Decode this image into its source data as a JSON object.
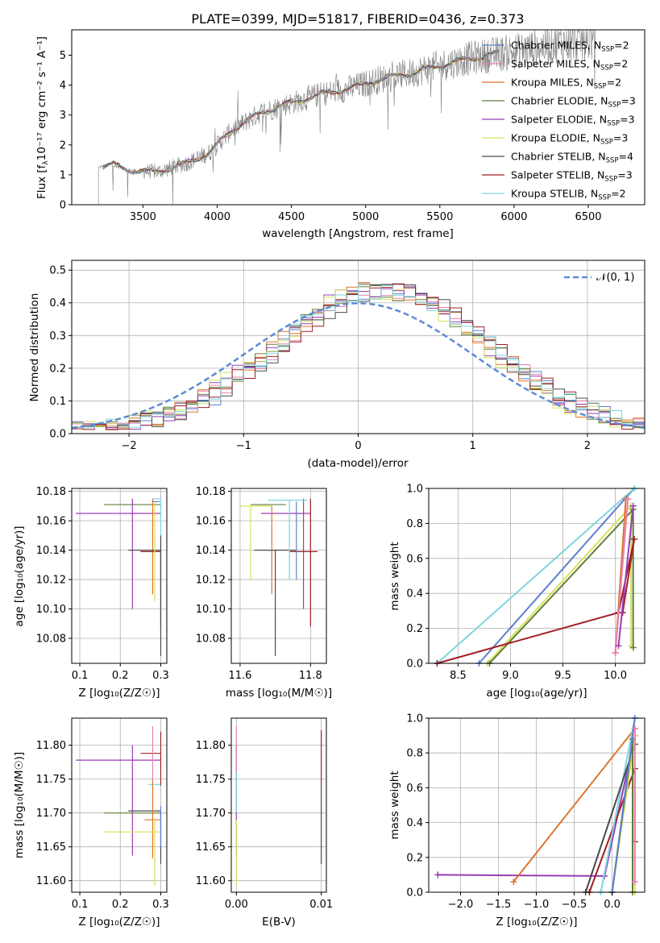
{
  "figure": {
    "title": "PLATE=0399, MJD=51817, FIBERID=0436, z=0.373"
  },
  "colors": {
    "data_spectrum": "#808080",
    "normal_curve": "#5b8bd6",
    "grid": "#b0b0b0"
  },
  "models": [
    {
      "label_main": "Chabrier MILES, N",
      "label_sub": "SSP",
      "label_tail": "=2",
      "color": "#5b7fce"
    },
    {
      "label_main": "Salpeter MILES, N",
      "label_sub": "SSP",
      "label_tail": "=2",
      "color": "#e87fae"
    },
    {
      "label_main": "Kroupa MILES, N",
      "label_sub": "SSP",
      "label_tail": "=2",
      "color": "#e0742c"
    },
    {
      "label_main": "Chabrier ELODIE, N",
      "label_sub": "SSP",
      "label_tail": "=3",
      "color": "#5f7f3a"
    },
    {
      "label_main": "Salpeter ELODIE, N",
      "label_sub": "SSP",
      "label_tail": "=3",
      "color": "#9a3cb5"
    },
    {
      "label_main": "Kroupa ELODIE, N",
      "label_sub": "SSP",
      "label_tail": "=3",
      "color": "#d4e35a"
    },
    {
      "label_main": "Chabrier STELIB, N",
      "label_sub": "SSP",
      "label_tail": "=4",
      "color": "#4a4a4a"
    },
    {
      "label_main": "Salpeter STELIB, N",
      "label_sub": "SSP",
      "label_tail": "=3",
      "color": "#a11f24"
    },
    {
      "label_main": "Kroupa STELIB, N",
      "label_sub": "SSP",
      "label_tail": "=2",
      "color": "#7fd4dc"
    }
  ],
  "chart_data": [
    {
      "id": "spectrum",
      "type": "line",
      "title": "PLATE=0399, MJD=51817, FIBERID=0436, z=0.373",
      "xlabel": "wavelength [Angstrom, rest frame]",
      "ylabel_main": "Flux [f",
      "ylabel_sub": "λ",
      "ylabel_tail": "10⁻¹⁷ erg cm⁻² s⁻¹ A⁻¹]",
      "xlim": [
        3020,
        6880
      ],
      "ylim": [
        0,
        5.85
      ],
      "xticks": [
        3500,
        4000,
        4500,
        5000,
        5500,
        6000,
        6500
      ],
      "yticks": [
        0,
        1,
        2,
        3,
        4,
        5
      ],
      "grid": false,
      "legend_position": "top-right",
      "x_range_data": [
        3200,
        6550
      ],
      "continuum_knots": [
        [
          3200,
          1.25
        ],
        [
          3300,
          1.35
        ],
        [
          3400,
          1.15
        ],
        [
          3600,
          1.1
        ],
        [
          3800,
          1.4
        ],
        [
          3950,
          1.75
        ],
        [
          4100,
          2.5
        ],
        [
          4300,
          3.1
        ],
        [
          4500,
          3.4
        ],
        [
          4700,
          3.7
        ],
        [
          4900,
          3.9
        ],
        [
          5100,
          4.2
        ],
        [
          5300,
          4.4
        ],
        [
          5500,
          4.65
        ],
        [
          5700,
          4.9
        ],
        [
          5900,
          5.05
        ],
        [
          6100,
          5.2
        ],
        [
          6300,
          5.4
        ],
        [
          6550,
          5.5
        ]
      ]
    },
    {
      "id": "residuals",
      "type": "histogram",
      "xlabel": "(data-model)/error",
      "ylabel": "Normed distribution",
      "xlim": [
        -2.5,
        2.5
      ],
      "ylim": [
        0,
        0.53
      ],
      "xticks": [
        -2,
        -1,
        0,
        1,
        2
      ],
      "yticks": [
        0,
        0.1,
        0.2,
        0.3,
        0.4,
        0.5
      ],
      "grid": true,
      "legend_position": "top-right",
      "normal_label": "𝒩(0, 1)",
      "bin_width": 0.1,
      "hist_center": 0.22,
      "hist_sigma": 0.93,
      "hist_peak": 0.44
    },
    {
      "id": "age-vs-Z",
      "type": "scatter",
      "xlabel": "Z [log₁₀(Z/Z☉)]",
      "ylabel": "age  [log₁₀(age/yr)]",
      "xlim": [
        0.08,
        0.315
      ],
      "ylim": [
        10.063,
        10.182
      ],
      "xticks": [
        0.1,
        0.2,
        0.3
      ],
      "yticks": [
        10.08,
        10.1,
        10.12,
        10.14,
        10.16,
        10.18
      ],
      "grid": true,
      "points": [
        {
          "x": 0.3,
          "y": 10.171,
          "xlo": 0.16,
          "xhi": 0.3,
          "ylo": 10.171,
          "yhi": 10.171,
          "model": 3
        },
        {
          "x": 0.3,
          "y": 10.165,
          "xlo": 0.09,
          "xhi": 0.3,
          "ylo": 10.165,
          "yhi": 10.165,
          "model": 4
        },
        {
          "x": 0.23,
          "y": 10.165,
          "xlo": 0.23,
          "xhi": 0.23,
          "ylo": 10.1,
          "yhi": 10.175,
          "model": 4
        },
        {
          "x": 0.28,
          "y": 10.17,
          "xlo": 0.28,
          "xhi": 0.28,
          "ylo": 10.11,
          "yhi": 10.175,
          "model": 2
        },
        {
          "x": 0.3,
          "y": 10.14,
          "xlo": 0.22,
          "xhi": 0.3,
          "ylo": 10.14,
          "yhi": 10.14,
          "model": 6
        },
        {
          "x": 0.3,
          "y": 10.139,
          "xlo": 0.25,
          "xhi": 0.3,
          "ylo": 10.088,
          "yhi": 10.139,
          "model": 7
        },
        {
          "x": 0.285,
          "y": 10.17,
          "xlo": 0.285,
          "xhi": 0.285,
          "ylo": 10.105,
          "yhi": 10.172,
          "model": 5
        },
        {
          "x": 0.3,
          "y": 10.175,
          "xlo": 0.28,
          "xhi": 0.3,
          "ylo": 10.12,
          "yhi": 10.175,
          "model": 8
        },
        {
          "x": 0.298,
          "y": 10.173,
          "xlo": 0.28,
          "xhi": 0.298,
          "ylo": 10.173,
          "yhi": 10.173,
          "model": 0
        },
        {
          "x": 0.3,
          "y": 10.15,
          "xlo": 0.3,
          "xhi": 0.3,
          "ylo": 10.068,
          "yhi": 10.15,
          "model": 6
        }
      ]
    },
    {
      "id": "age-vs-mass",
      "type": "scatter",
      "xlabel": "mass [log₁₀(M/M☉)]",
      "ylabel": "",
      "xlim": [
        11.575,
        11.845
      ],
      "ylim": [
        10.063,
        10.182
      ],
      "xticks": [
        11.6,
        11.8
      ],
      "yticks": [
        10.08,
        10.1,
        10.12,
        10.14,
        10.16,
        10.18
      ],
      "grid": true,
      "points": [
        {
          "x": 11.7,
          "y": 10.171,
          "xlo": 11.63,
          "xhi": 11.73,
          "ylo": 10.171,
          "yhi": 10.171,
          "model": 3
        },
        {
          "x": 11.7,
          "y": 10.165,
          "xlo": 11.66,
          "xhi": 11.8,
          "ylo": 10.165,
          "yhi": 10.165,
          "model": 4
        },
        {
          "x": 11.78,
          "y": 10.165,
          "xlo": 11.78,
          "xhi": 11.78,
          "ylo": 10.1,
          "yhi": 10.175,
          "model": 4
        },
        {
          "x": 11.69,
          "y": 10.17,
          "xlo": 11.6,
          "xhi": 11.69,
          "ylo": 10.17,
          "yhi": 10.17,
          "model": 5
        },
        {
          "x": 11.63,
          "y": 10.17,
          "xlo": 11.63,
          "xhi": 11.63,
          "ylo": 10.12,
          "yhi": 10.17,
          "model": 5
        },
        {
          "x": 11.69,
          "y": 10.17,
          "xlo": 11.69,
          "xhi": 11.69,
          "ylo": 10.11,
          "yhi": 10.17,
          "model": 2
        },
        {
          "x": 11.7,
          "y": 10.14,
          "xlo": 11.64,
          "xhi": 11.76,
          "ylo": 10.14,
          "yhi": 10.14,
          "model": 6
        },
        {
          "x": 11.7,
          "y": 10.14,
          "xlo": 11.7,
          "xhi": 11.7,
          "ylo": 10.068,
          "yhi": 10.14,
          "model": 6
        },
        {
          "x": 11.78,
          "y": 10.139,
          "xlo": 11.74,
          "xhi": 11.82,
          "ylo": 10.139,
          "yhi": 10.139,
          "model": 7
        },
        {
          "x": 11.8,
          "y": 10.139,
          "xlo": 11.8,
          "xhi": 11.8,
          "ylo": 10.088,
          "yhi": 10.175,
          "model": 7
        },
        {
          "x": 11.74,
          "y": 10.174,
          "xlo": 11.68,
          "xhi": 11.79,
          "ylo": 10.174,
          "yhi": 10.174,
          "model": 8
        },
        {
          "x": 11.74,
          "y": 10.174,
          "xlo": 11.74,
          "xhi": 11.74,
          "ylo": 10.12,
          "yhi": 10.174,
          "model": 8
        },
        {
          "x": 11.76,
          "y": 10.173,
          "xlo": 11.76,
          "xhi": 11.76,
          "ylo": 10.12,
          "yhi": 10.173,
          "model": 0
        }
      ]
    },
    {
      "id": "weight-vs-age",
      "type": "line",
      "xlabel": "age  [log₁₀(age/yr)]",
      "ylabel": "mass weight",
      "xlim": [
        8.22,
        10.28
      ],
      "ylim": [
        0,
        1
      ],
      "xticks": [
        8.5,
        9.0,
        9.5,
        10.0
      ],
      "yticks": [
        0,
        0.2,
        0.4,
        0.6,
        0.8,
        1.0
      ],
      "grid": true,
      "series": [
        {
          "model": 0,
          "points": [
            [
              8.7,
              0.0
            ],
            [
              10.18,
              1.0
            ]
          ]
        },
        {
          "model": 8,
          "points": [
            [
              8.3,
              0.0
            ],
            [
              10.18,
              1.0
            ]
          ]
        },
        {
          "model": 5,
          "points": [
            [
              8.78,
              0.0
            ],
            [
              10.15,
              0.9
            ],
            [
              10.15,
              0.1
            ]
          ]
        },
        {
          "model": 3,
          "points": [
            [
              8.8,
              0.0
            ],
            [
              10.17,
              0.88
            ],
            [
              10.17,
              0.09
            ]
          ]
        },
        {
          "model": 7,
          "points": [
            [
              8.3,
              0.0
            ],
            [
              10.03,
              0.29
            ],
            [
              10.18,
              0.71
            ],
            [
              10.07,
              0.29
            ]
          ]
        },
        {
          "model": 2,
          "points": [
            [
              10.0,
              0.06
            ],
            [
              10.1,
              0.94
            ]
          ]
        },
        {
          "model": 1,
          "points": [
            [
              10.0,
              0.06
            ],
            [
              10.12,
              0.94
            ]
          ]
        },
        {
          "model": 4,
          "points": [
            [
              10.03,
              0.1
            ],
            [
              10.17,
              0.9
            ]
          ]
        }
      ]
    },
    {
      "id": "mass-vs-Z",
      "type": "scatter",
      "xlabel": "Z [log₁₀(Z/Z☉)]",
      "ylabel": "mass [log₁₀(M/M☉)]",
      "xlim": [
        0.08,
        0.315
      ],
      "ylim": [
        11.583,
        11.84
      ],
      "xticks": [
        0.1,
        0.2,
        0.3
      ],
      "yticks": [
        11.6,
        11.65,
        11.7,
        11.75,
        11.8
      ],
      "grid": true,
      "points": [
        {
          "x": 0.3,
          "y": 11.778,
          "xlo": 0.09,
          "xhi": 0.3,
          "ylo": 11.778,
          "yhi": 11.778,
          "model": 4
        },
        {
          "x": 0.23,
          "y": 11.778,
          "xlo": 0.23,
          "xhi": 0.23,
          "ylo": 11.637,
          "yhi": 11.8,
          "model": 4
        },
        {
          "x": 0.3,
          "y": 11.788,
          "xlo": 0.25,
          "xhi": 0.3,
          "ylo": 11.788,
          "yhi": 11.788,
          "model": 7
        },
        {
          "x": 0.3,
          "y": 11.788,
          "xlo": 0.3,
          "xhi": 0.3,
          "ylo": 11.74,
          "yhi": 11.82,
          "model": 7
        },
        {
          "x": 0.3,
          "y": 11.742,
          "xlo": 0.27,
          "xhi": 0.3,
          "ylo": 11.742,
          "yhi": 11.742,
          "model": 8
        },
        {
          "x": 0.3,
          "y": 11.7,
          "xlo": 0.16,
          "xhi": 0.3,
          "ylo": 11.7,
          "yhi": 11.7,
          "model": 3
        },
        {
          "x": 0.3,
          "y": 11.703,
          "xlo": 0.22,
          "xhi": 0.3,
          "ylo": 11.703,
          "yhi": 11.703,
          "model": 6
        },
        {
          "x": 0.3,
          "y": 11.703,
          "xlo": 0.3,
          "xhi": 0.3,
          "ylo": 11.625,
          "yhi": 11.703,
          "model": 6
        },
        {
          "x": 0.3,
          "y": 11.69,
          "xlo": 0.26,
          "xhi": 0.3,
          "ylo": 11.69,
          "yhi": 11.69,
          "model": 2
        },
        {
          "x": 0.28,
          "y": 11.69,
          "xlo": 0.28,
          "xhi": 0.28,
          "ylo": 11.633,
          "yhi": 11.75,
          "model": 2
        },
        {
          "x": 0.3,
          "y": 11.672,
          "xlo": 0.16,
          "xhi": 0.3,
          "ylo": 11.672,
          "yhi": 11.672,
          "model": 5
        },
        {
          "x": 0.285,
          "y": 11.672,
          "xlo": 0.285,
          "xhi": 0.285,
          "ylo": 11.593,
          "yhi": 11.69,
          "model": 5
        },
        {
          "x": 0.28,
          "y": 11.8,
          "xlo": 0.28,
          "xhi": 0.28,
          "ylo": 11.75,
          "yhi": 11.828,
          "model": 1
        },
        {
          "x": 0.3,
          "y": 11.71,
          "xlo": 0.3,
          "xhi": 0.3,
          "ylo": 11.65,
          "yhi": 11.71,
          "model": 0
        }
      ]
    },
    {
      "id": "mass-vs-ebv",
      "type": "scatter",
      "xlabel": "E(B-V)",
      "ylabel": "",
      "xlim": [
        -0.0006,
        0.0106
      ],
      "ylim": [
        11.583,
        11.84
      ],
      "xticks": [
        0.0,
        0.01
      ],
      "yticks": [
        11.6,
        11.65,
        11.7,
        11.75,
        11.8
      ],
      "grid": true,
      "points": [
        {
          "x": 0.0,
          "y": 11.778,
          "xlo": 0.0,
          "xhi": 0.0,
          "ylo": 11.637,
          "yhi": 11.8,
          "model": 4
        },
        {
          "x": 0.0,
          "y": 11.8,
          "xlo": 0.0,
          "xhi": 0.0,
          "ylo": 11.75,
          "yhi": 11.828,
          "model": 1
        },
        {
          "x": 0.0,
          "y": 11.742,
          "xlo": 0.0,
          "xhi": 0.0,
          "ylo": 11.7,
          "yhi": 11.76,
          "model": 8
        },
        {
          "x": 0.0,
          "y": 11.672,
          "xlo": 0.0,
          "xhi": 0.0,
          "ylo": 11.593,
          "yhi": 11.69,
          "model": 5
        },
        {
          "x": 0.01,
          "y": 11.788,
          "xlo": 0.01,
          "xhi": 0.01,
          "ylo": 11.74,
          "yhi": 11.822,
          "model": 7
        },
        {
          "x": 0.01,
          "y": 11.703,
          "xlo": 0.01,
          "xhi": 0.01,
          "ylo": 11.625,
          "yhi": 11.74,
          "model": 6
        }
      ]
    },
    {
      "id": "weight-vs-Z",
      "type": "line",
      "xlabel": "Z [log₁₀(Z/Z☉)]",
      "ylabel": "mass weight",
      "xlim": [
        -2.42,
        0.43
      ],
      "ylim": [
        0,
        1
      ],
      "xticks": [
        -2.0,
        -1.5,
        -1.0,
        -0.5,
        0.0
      ],
      "yticks": [
        0,
        0.2,
        0.4,
        0.6,
        0.8,
        1.0
      ],
      "grid": true,
      "series": [
        {
          "model": 4,
          "points": [
            [
              -2.3,
              0.1
            ],
            [
              -0.1,
              0.093
            ],
            [
              0.3,
              0.9
            ]
          ]
        },
        {
          "model": 2,
          "points": [
            [
              -1.3,
              0.06
            ],
            [
              0.3,
              0.94
            ]
          ]
        },
        {
          "model": 7,
          "points": [
            [
              -0.3,
              0.0
            ],
            [
              0.3,
              0.71
            ],
            [
              0.3,
              0.29
            ]
          ]
        },
        {
          "model": 8,
          "points": [
            [
              -0.15,
              0.0
            ],
            [
              0.3,
              1.0
            ]
          ]
        },
        {
          "model": 6,
          "points": [
            [
              -0.35,
              0.0
            ],
            [
              0.3,
              0.85
            ]
          ]
        },
        {
          "model": 5,
          "points": [
            [
              0.0,
              0.0
            ],
            [
              0.3,
              0.9
            ],
            [
              0.3,
              0.0
            ]
          ]
        },
        {
          "model": 3,
          "points": [
            [
              0.0,
              0.0
            ],
            [
              0.27,
              0.88
            ],
            [
              0.27,
              0.0
            ]
          ]
        },
        {
          "model": 0,
          "points": [
            [
              0.0,
              0.0
            ],
            [
              0.3,
              1.0
            ]
          ]
        },
        {
          "model": 1,
          "points": [
            [
              0.3,
              0.06
            ],
            [
              0.3,
              0.94
            ]
          ]
        }
      ]
    }
  ]
}
